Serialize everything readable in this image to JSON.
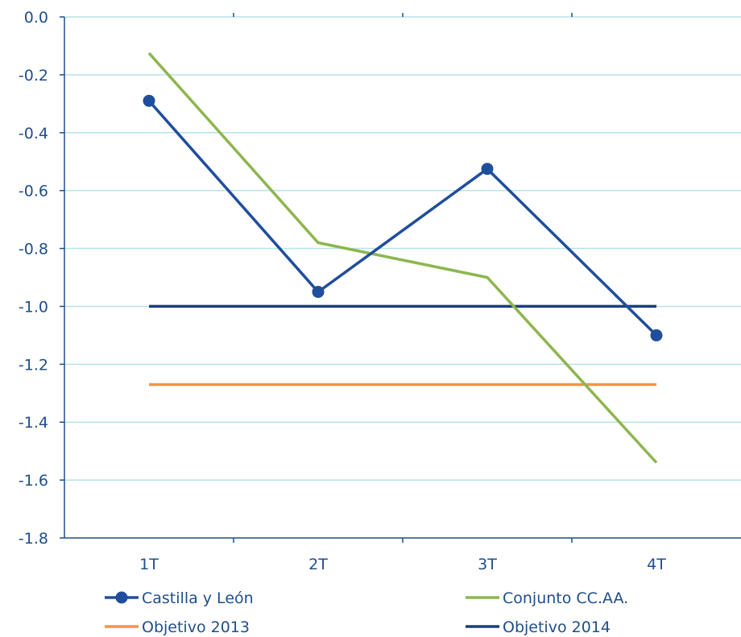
{
  "chart_data": {
    "type": "line",
    "categories": [
      "1T",
      "2T",
      "3T",
      "4T"
    ],
    "ylim": [
      -1.8,
      0.0
    ],
    "yticks": [
      "0.0",
      "-0.2",
      "-0.4",
      "-0.6",
      "-0.8",
      "-1.0",
      "-1.2",
      "-1.4",
      "-1.6",
      "-1.8"
    ],
    "grid": true,
    "legend_position": "bottom",
    "series": [
      {
        "name": "Castilla y León",
        "values": [
          -0.29,
          -0.95,
          -0.525,
          -1.1
        ],
        "color": "#1f4e9c",
        "markers": true
      },
      {
        "name": "Conjunto CC.AA.",
        "values": [
          -0.125,
          -0.78,
          -0.9,
          -1.54
        ],
        "color": "#8db64e",
        "markers": false
      },
      {
        "name": "Objetivo 2013",
        "values": [
          -1.27,
          -1.27,
          -1.27,
          -1.27
        ],
        "color": "#f0954a",
        "markers": false
      },
      {
        "name": "Objetivo 2014",
        "values": [
          -1.0,
          -1.0,
          -1.0,
          -1.0
        ],
        "color": "#1c3f78",
        "markers": false
      }
    ],
    "colors": {
      "axis": "#1f4e8c",
      "grid": "#b7e3e8",
      "text": "#1f4e8c"
    }
  }
}
